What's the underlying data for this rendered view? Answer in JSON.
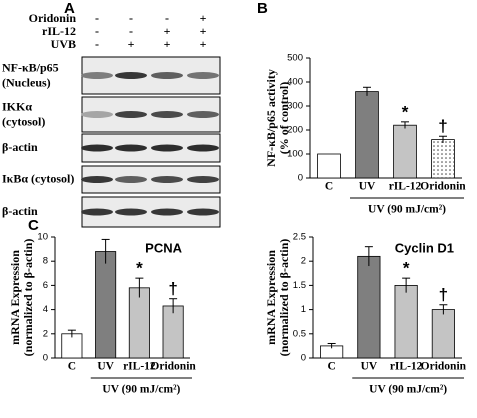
{
  "blots": {
    "panel_label": "A",
    "treatments": [
      {
        "name": "Oridonin",
        "signs": [
          "-",
          "-",
          "-",
          "+"
        ]
      },
      {
        "name": "rIL-12",
        "signs": [
          "-",
          "-",
          "+",
          "+"
        ]
      },
      {
        "name": "UVB",
        "signs": [
          "-",
          "+",
          "+",
          "+"
        ]
      }
    ],
    "rows": [
      {
        "label": "NF-κB/p65",
        "sublabel": "(Nucleus)"
      },
      {
        "label": "IKKα",
        "sublabel": "(cytosol)"
      },
      {
        "label": "β-actin"
      },
      {
        "label": "IκBα (cytosol)"
      },
      {
        "label": "β-actin"
      }
    ]
  },
  "chart_data": [
    {
      "type": "bar",
      "panel_label": "B",
      "y_label": [
        "NF-κB/p65 activity",
        "(% of control)"
      ],
      "categories": [
        "C",
        "UV",
        "rIL-12",
        "Oridonin"
      ],
      "values": [
        100,
        360,
        220,
        160
      ],
      "errors": [
        0,
        18,
        14,
        14
      ],
      "colors": [
        "#ffffff",
        "#7f7f7f",
        "#c4c4c4",
        "#ffffff"
      ],
      "hatch": [
        null,
        null,
        null,
        "dots"
      ],
      "markers": [
        null,
        null,
        "*",
        "†"
      ],
      "group_label": "UV (90 mJ/cm²)",
      "ylim": [
        0,
        500
      ],
      "yticks": [
        0,
        100,
        200,
        300,
        400,
        500
      ]
    },
    {
      "type": "bar",
      "panel_label": "C",
      "title": "PCNA",
      "y_label": [
        "mRNA Expression",
        "(normalized to β-actin)"
      ],
      "categories": [
        "C",
        "UV",
        "rIL-12",
        "Oridonin"
      ],
      "values": [
        2,
        8.8,
        5.8,
        4.3
      ],
      "errors": [
        0.3,
        1,
        0.8,
        0.6
      ],
      "colors": [
        "#ffffff",
        "#7f7f7f",
        "#c4c4c4",
        "#c4c4c4"
      ],
      "hatch": [
        null,
        null,
        null,
        null
      ],
      "markers": [
        null,
        null,
        "*",
        "†"
      ],
      "group_label": "UV (90 mJ/cm²)",
      "ylim": [
        0,
        10
      ],
      "yticks": [
        0,
        2,
        4,
        6,
        8,
        10
      ]
    },
    {
      "type": "bar",
      "title": "Cyclin D1",
      "y_label": [
        "mRNA Expression",
        "(normalized to β-actin)"
      ],
      "categories": [
        "C",
        "UV",
        "rIL-12",
        "Oridonin"
      ],
      "values": [
        0.25,
        2.1,
        1.5,
        1
      ],
      "errors": [
        0.05,
        0.2,
        0.15,
        0.1
      ],
      "colors": [
        "#ffffff",
        "#7f7f7f",
        "#c4c4c4",
        "#c4c4c4"
      ],
      "hatch": [
        null,
        null,
        null,
        null
      ],
      "markers": [
        null,
        null,
        "*",
        "†"
      ],
      "group_label": "UV (90 mJ/cm²)",
      "ylim": [
        0,
        2.5
      ],
      "yticks": [
        0,
        0.5,
        1,
        1.5,
        2,
        2.5
      ]
    }
  ]
}
